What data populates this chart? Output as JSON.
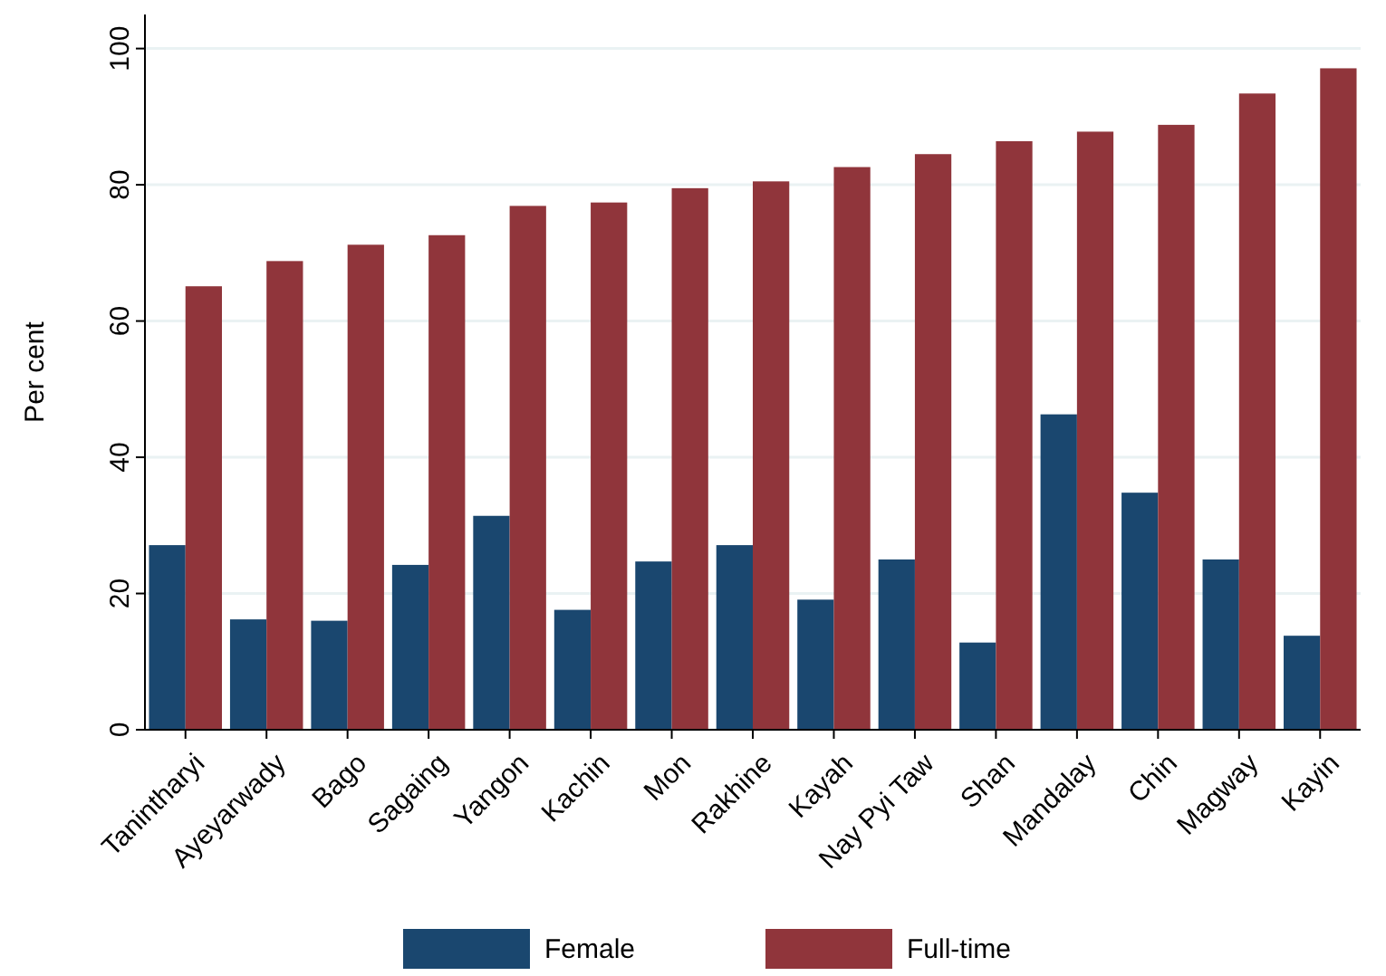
{
  "chart_data": {
    "type": "bar",
    "ylabel": "Per cent",
    "categories": [
      "Tanintharyi",
      "Ayeyarwady",
      "Bago",
      "Sagaing",
      "Yangon",
      "Kachin",
      "Mon",
      "Rakhine",
      "Kayah",
      "Nay Pyi Taw",
      "Shan",
      "Mandalay",
      "Chin",
      "Magway",
      "Kayin"
    ],
    "series": [
      {
        "name": "Female",
        "color": "#1a476f",
        "values": [
          27.1,
          16.2,
          16,
          24.2,
          31.4,
          17.6,
          24.7,
          27.1,
          19.1,
          25,
          12.8,
          46.3,
          34.8,
          25,
          13.8
        ]
      },
      {
        "name": "Full-time",
        "color": "#90353b",
        "values": [
          65.1,
          68.8,
          71.2,
          72.6,
          76.9,
          77.4,
          79.5,
          80.5,
          82.6,
          84.5,
          86.4,
          87.8,
          88.8,
          93.4,
          97.1
        ]
      }
    ],
    "ylim": [
      0,
      105
    ],
    "yticks": [
      0,
      20,
      40,
      60,
      80,
      100
    ],
    "grid": "y",
    "legend": "bottom"
  }
}
